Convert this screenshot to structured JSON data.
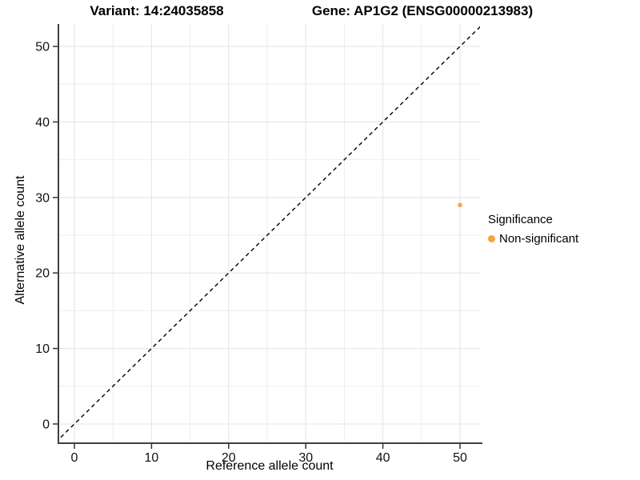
{
  "chart_data": {
    "type": "scatter",
    "titles": [
      "Variant: 14:24035858",
      "Gene: AP1G2 (ENSG00000213983)"
    ],
    "xlabel": "Reference allele count",
    "ylabel": "Alternative allele count",
    "xlim": [
      -1.97,
      52.59
    ],
    "ylim": [
      -2.44,
      52.97
    ],
    "xticks": [
      0,
      10,
      20,
      30,
      40,
      50
    ],
    "yticks": [
      0,
      10,
      20,
      30,
      40,
      50
    ],
    "grid": {
      "show": true,
      "interval": 5,
      "min": 0,
      "max": 50
    },
    "reference_line": {
      "kind": "identity",
      "label": "y = x",
      "style": "dashed",
      "color": "#000000"
    },
    "series": [
      {
        "name": "Non-significant",
        "color": "#F9A242",
        "points": [
          {
            "x": 50,
            "y": 29
          }
        ]
      }
    ],
    "legend": {
      "title": "Significance",
      "position": "right",
      "entries": [
        {
          "label": "Non-significant",
          "color": "#F9A242"
        }
      ]
    },
    "colors": {
      "accent_orange": "#F9A242",
      "axis_line": "#3f3f3f",
      "tick_mark": "#333333",
      "grid_major": "#e3e3e3",
      "grid_minor": "#eeeeee",
      "reference_line": "#000000",
      "text": "#000000",
      "background": "#ffffff"
    }
  }
}
